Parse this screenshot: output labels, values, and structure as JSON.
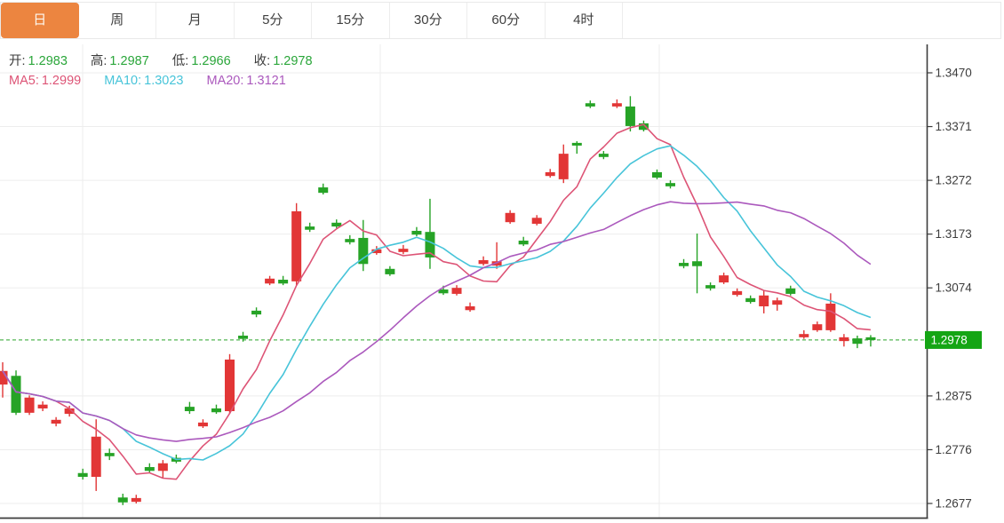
{
  "tabs": {
    "items": [
      {
        "label": "日",
        "selected": true
      },
      {
        "label": "周",
        "selected": false
      },
      {
        "label": "月",
        "selected": false
      },
      {
        "label": "5分",
        "selected": false
      },
      {
        "label": "15分",
        "selected": false
      },
      {
        "label": "30分",
        "selected": false
      },
      {
        "label": "60分",
        "selected": false
      },
      {
        "label": "4时",
        "selected": false
      }
    ]
  },
  "ohlc_bar": {
    "open_label": "开:",
    "open_value": "1.2983",
    "high_label": "高:",
    "high_value": "1.2987",
    "low_label": "低:",
    "low_value": "1.2966",
    "close_label": "收:",
    "close_value": "1.2978"
  },
  "ma_bar": {
    "ma5_label": "MA5:",
    "ma5_value": "1.2999",
    "ma10_label": "MA10:",
    "ma10_value": "1.3023",
    "ma20_label": "MA20:",
    "ma20_value": "1.3121"
  },
  "axis": {
    "ticks": [
      "1.3470",
      "1.3371",
      "1.3272",
      "1.3173",
      "1.3074",
      "1.2875",
      "1.2776",
      "1.2677"
    ]
  },
  "current_price": {
    "value": "1.2978"
  },
  "colors": {
    "up": "#e23636",
    "down": "#26a326",
    "ma5": "#dd5476",
    "ma10": "#47c4d9",
    "ma20": "#ab59bd",
    "badge": "#14a514",
    "price_line": "#2ba52b",
    "grid": "#ededed",
    "axis_line": "#3c3c3c",
    "axis_text": "#3d3d3d",
    "tab_selected_bg": "#ec8540",
    "ohlc_value": "#2aa63a"
  },
  "chart_data": {
    "type": "candlestick",
    "title": "",
    "convention": "red = up (close >= open), green = down (CN market colors)",
    "ylabel": "price",
    "ylim": [
      1.2628,
      1.347
    ],
    "ma_periods": [
      5,
      10,
      20
    ],
    "ma_current": {
      "MA5": 1.2999,
      "MA10": 1.3023,
      "MA20": 1.3121
    },
    "last_bar": {
      "open": 1.2983,
      "high": 1.2987,
      "low": 1.2966,
      "close": 1.2978
    },
    "candles": [
      [
        1.2896,
        1.2937,
        1.2872,
        1.2921
      ],
      [
        1.2912,
        1.2922,
        1.284,
        1.2844
      ],
      [
        1.2844,
        1.2876,
        1.284,
        1.2872
      ],
      [
        1.2852,
        1.2865,
        1.2847,
        1.2859
      ],
      [
        1.2824,
        1.2836,
        1.2819,
        1.2831
      ],
      [
        1.2842,
        1.2857,
        1.2837,
        1.2852
      ],
      [
        1.2733,
        1.2741,
        1.2721,
        1.2726
      ],
      [
        1.2726,
        1.2832,
        1.27,
        1.28
      ],
      [
        1.277,
        1.2778,
        1.2757,
        1.2764
      ],
      [
        1.2688,
        1.2695,
        1.2674,
        1.2679
      ],
      [
        1.268,
        1.2693,
        1.2677,
        1.2687
      ],
      [
        1.2744,
        1.2751,
        1.2733,
        1.2737
      ],
      [
        1.2737,
        1.2757,
        1.2724,
        1.2751
      ],
      [
        1.2761,
        1.2767,
        1.2751,
        1.2754
      ],
      [
        1.2855,
        1.2864,
        1.2842,
        1.2847
      ],
      [
        1.2819,
        1.2832,
        1.2816,
        1.2826
      ],
      [
        1.2852,
        1.2859,
        1.2842,
        1.2845
      ],
      [
        1.2847,
        1.2952,
        1.2842,
        1.2942
      ],
      [
        1.2986,
        1.2993,
        1.2975,
        1.298
      ],
      [
        1.3032,
        1.3038,
        1.302,
        1.3025
      ],
      [
        1.3082,
        1.3096,
        1.3079,
        1.3091
      ],
      [
        1.3089,
        1.3096,
        1.3079,
        1.3082
      ],
      [
        1.3086,
        1.323,
        1.3078,
        1.3215
      ],
      [
        1.3187,
        1.3194,
        1.3177,
        1.3181
      ],
      [
        1.3259,
        1.3266,
        1.3246,
        1.3249
      ],
      [
        1.3194,
        1.32,
        1.3184,
        1.3187
      ],
      [
        1.3164,
        1.3171,
        1.3154,
        1.3158
      ],
      [
        1.3166,
        1.3199,
        1.3105,
        1.3118
      ],
      [
        1.3138,
        1.3151,
        1.3135,
        1.3145
      ],
      [
        1.3109,
        1.3114,
        1.3096,
        1.3099
      ],
      [
        1.314,
        1.3153,
        1.3136,
        1.3146
      ],
      [
        1.3179,
        1.3186,
        1.3169,
        1.3172
      ],
      [
        1.3177,
        1.3238,
        1.3109,
        1.313
      ],
      [
        1.3071,
        1.3078,
        1.3061,
        1.3064
      ],
      [
        1.3063,
        1.3079,
        1.306,
        1.3074
      ],
      [
        1.3033,
        1.3047,
        1.303,
        1.304
      ],
      [
        1.3118,
        1.3132,
        1.3115,
        1.3125
      ],
      [
        1.3115,
        1.3158,
        1.3109,
        1.3123
      ],
      [
        1.3195,
        1.3217,
        1.3192,
        1.3212
      ],
      [
        1.3161,
        1.3168,
        1.3151,
        1.3154
      ],
      [
        1.3192,
        1.3208,
        1.3189,
        1.3203
      ],
      [
        1.328,
        1.3293,
        1.3277,
        1.3287
      ],
      [
        1.3274,
        1.3338,
        1.3267,
        1.3321
      ],
      [
        1.3341,
        1.3344,
        1.3321,
        1.3336
      ],
      [
        1.3414,
        1.3419,
        1.3405,
        1.3408
      ],
      [
        1.3321,
        1.3326,
        1.3311,
        1.3315
      ],
      [
        1.3408,
        1.3421,
        1.3405,
        1.3414
      ],
      [
        1.3408,
        1.3427,
        1.3362,
        1.3372
      ],
      [
        1.3377,
        1.3382,
        1.3362,
        1.3365
      ],
      [
        1.3287,
        1.3292,
        1.3274,
        1.3277
      ],
      [
        1.3267,
        1.3272,
        1.3257,
        1.3261
      ],
      [
        1.312,
        1.3127,
        1.311,
        1.3114
      ],
      [
        1.3123,
        1.3174,
        1.3064,
        1.3114
      ],
      [
        1.3079,
        1.3084,
        1.3069,
        1.3073
      ],
      [
        1.3084,
        1.3102,
        1.3081,
        1.3097
      ],
      [
        1.3061,
        1.3073,
        1.3058,
        1.3068
      ],
      [
        1.3055,
        1.306,
        1.3045,
        1.3048
      ],
      [
        1.304,
        1.307,
        1.3027,
        1.306
      ],
      [
        1.3043,
        1.3056,
        1.3032,
        1.3051
      ],
      [
        1.3073,
        1.3078,
        1.306,
        1.3063
      ],
      [
        1.2983,
        1.2996,
        1.298,
        1.2989
      ],
      [
        1.2996,
        1.3012,
        1.2993,
        1.3007
      ],
      [
        1.2996,
        1.3064,
        1.2993,
        1.3045
      ],
      [
        1.2976,
        1.2989,
        1.2966,
        1.2983
      ],
      [
        1.2981,
        1.2986,
        1.2963,
        1.2971
      ],
      [
        1.2983,
        1.2987,
        1.2966,
        1.2978
      ]
    ]
  }
}
